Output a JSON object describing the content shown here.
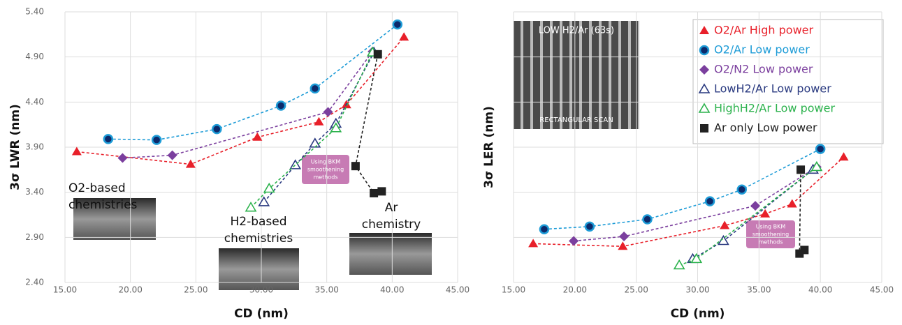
{
  "chart_data": [
    {
      "type": "line",
      "ylabel": "3σ LWR (nm)",
      "xlabel": "CD (nm)",
      "xlim": [
        15,
        45
      ],
      "ylim": [
        2.4,
        5.4
      ],
      "grid": true,
      "xticks": [
        {
          "value": 15,
          "label": "15.00"
        },
        {
          "value": 20,
          "label": "20.00"
        },
        {
          "value": 25,
          "label": "25.00"
        },
        {
          "value": 30,
          "label": "30.00"
        },
        {
          "value": 35,
          "label": "35.00"
        },
        {
          "value": 40,
          "label": "40.00"
        },
        {
          "value": 45,
          "label": "45.00"
        }
      ],
      "yticks": [
        {
          "value": 2.4,
          "label": "2.40"
        },
        {
          "value": 2.9,
          "label": "2.90"
        },
        {
          "value": 3.4,
          "label": "3.40"
        },
        {
          "value": 3.9,
          "label": "3.90"
        },
        {
          "value": 4.4,
          "label": "4.40"
        },
        {
          "value": 4.9,
          "label": "4.90"
        },
        {
          "value": 5.4,
          "label": "5.40"
        }
      ],
      "annotations": [
        [
          "O2-based",
          "chemistries"
        ],
        [
          "H2-based",
          "chemistries"
        ],
        [
          "Ar",
          "chemistry"
        ],
        [
          "Using BKM",
          "smoothening",
          "methods"
        ]
      ],
      "series": [
        {
          "name": "O2/Ar High power",
          "color": "#e8202a",
          "marker": "triangle",
          "x": [
            15.9,
            24.6,
            29.7,
            34.4,
            36.5,
            40.9
          ],
          "values": [
            3.85,
            3.71,
            4.01,
            4.18,
            4.37,
            5.12
          ]
        },
        {
          "name": "O2/Ar Low power",
          "color": "#1e9cd7",
          "marker": "circle",
          "x": [
            18.3,
            22.0,
            26.6,
            31.5,
            34.1,
            40.4
          ],
          "values": [
            3.99,
            3.98,
            4.1,
            4.36,
            4.55,
            5.26
          ]
        },
        {
          "name": "O2/N2 Low power",
          "color": "#7b3f9e",
          "marker": "diamond",
          "x": [
            19.4,
            23.2,
            35.1,
            38.5
          ],
          "values": [
            3.78,
            3.81,
            4.29,
            4.96
          ]
        },
        {
          "name": "LowH2/Ar Low power",
          "color": "#2a3a80",
          "marker": "triangle-open",
          "x": [
            30.2,
            32.6,
            34.1,
            35.7,
            38.6
          ],
          "values": [
            3.29,
            3.7,
            3.94,
            4.16,
            4.95
          ]
        },
        {
          "name": "HighH2/Ar Low power",
          "color": "#2bb24c",
          "marker": "triangle-open",
          "x": [
            29.2,
            30.6,
            35.7,
            38.5
          ],
          "values": [
            3.23,
            3.44,
            4.11,
            4.95
          ]
        },
        {
          "name": "Ar only Low power",
          "color": "#222222",
          "marker": "square",
          "x": [
            38.9,
            37.2,
            38.6,
            39.2
          ],
          "values": [
            4.93,
            3.69,
            3.39,
            3.41
          ]
        }
      ]
    },
    {
      "type": "line",
      "ylabel": "3σ LER (nm)",
      "xlabel": "CD (nm)",
      "xlim": [
        15,
        45
      ],
      "ylim": [
        2.4,
        5.4
      ],
      "grid": true,
      "ytick_labels": false,
      "legend": "upper right",
      "xticks": [
        {
          "value": 15,
          "label": "15.00"
        },
        {
          "value": 20,
          "label": "20.00"
        },
        {
          "value": 25,
          "label": "25.00"
        },
        {
          "value": 30,
          "label": "30.00"
        },
        {
          "value": 35,
          "label": "35.00"
        },
        {
          "value": 40,
          "label": "40.00"
        },
        {
          "value": 45,
          "label": "45.00"
        }
      ],
      "yticks": [
        2.4,
        2.9,
        3.4,
        3.9,
        4.4,
        4.9,
        5.4
      ],
      "annotations": [
        [
          "LOW H2/Ar (63s)"
        ],
        [
          "RECTANGULAR SCAN"
        ],
        [
          "Using BKM",
          "smoothening",
          "methods"
        ]
      ],
      "series": [
        {
          "name": "O2/Ar High power",
          "color": "#e8202a",
          "marker": "triangle",
          "x": [
            16.6,
            23.9,
            32.2,
            35.5,
            37.7,
            41.9
          ],
          "values": [
            2.83,
            2.8,
            3.03,
            3.16,
            3.27,
            3.79
          ]
        },
        {
          "name": "O2/Ar Low power",
          "color": "#1e9cd7",
          "marker": "circle",
          "x": [
            17.5,
            21.2,
            25.9,
            31.0,
            33.6,
            40.0
          ],
          "values": [
            2.99,
            3.02,
            3.1,
            3.3,
            3.43,
            3.88
          ]
        },
        {
          "name": "O2/N2 Low power",
          "color": "#7b3f9e",
          "marker": "diamond",
          "x": [
            19.9,
            24.0,
            34.7,
            39.7
          ],
          "values": [
            2.86,
            2.91,
            3.25,
            3.68
          ]
        },
        {
          "name": "LowH2/Ar Low power",
          "color": "#2a3a80",
          "marker": "triangle-open",
          "x": [
            29.6,
            32.1,
            39.4
          ],
          "values": [
            2.66,
            2.86,
            3.65
          ]
        },
        {
          "name": "HighH2/Ar Low power",
          "color": "#2bb24c",
          "marker": "triangle-open",
          "x": [
            28.5,
            29.9,
            39.7
          ],
          "values": [
            2.59,
            2.66,
            3.68
          ]
        },
        {
          "name": "Ar only Low power",
          "color": "#222222",
          "marker": "square",
          "x": [
            38.4,
            38.3,
            38.7
          ],
          "values": [
            3.65,
            2.72,
            2.76
          ]
        }
      ]
    }
  ]
}
